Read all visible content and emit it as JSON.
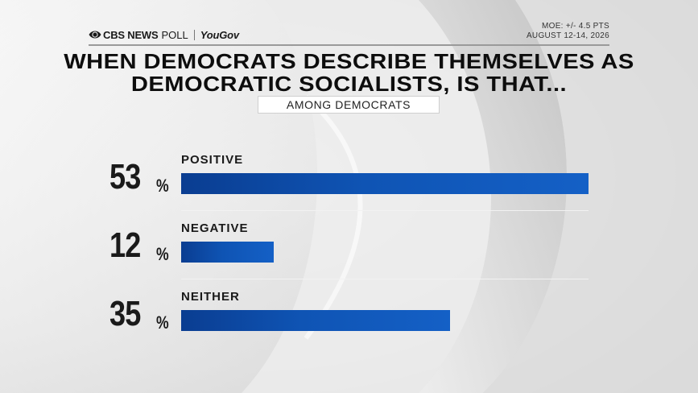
{
  "header": {
    "network": "CBS NEWS",
    "poll_label": "POLL",
    "partner": "YouGov",
    "moe": "MOE: +/- 4.5 PTS",
    "dates": "AUGUST 12-14, 2026"
  },
  "chart_data": {
    "type": "bar",
    "orientation": "horizontal",
    "title_lines": [
      "WHEN DEMOCRATS DESCRIBE THEMSELVES AS",
      "DEMOCRATIC SOCIALISTS, IS THAT..."
    ],
    "subtitle": "AMONG DEMOCRATS",
    "categories": [
      "POSITIVE",
      "NEGATIVE",
      "NEITHER"
    ],
    "values": [
      53,
      12,
      35
    ],
    "value_labels": [
      "53",
      "12",
      "35"
    ],
    "value_suffix": "%",
    "xlim": [
      0,
      53
    ],
    "grid": false,
    "legend": "none",
    "bar_color": "#0f54b4"
  },
  "colors": {
    "bar": "#0f54b4",
    "text": "#1a1a1a",
    "background": "#d6d6d6"
  }
}
